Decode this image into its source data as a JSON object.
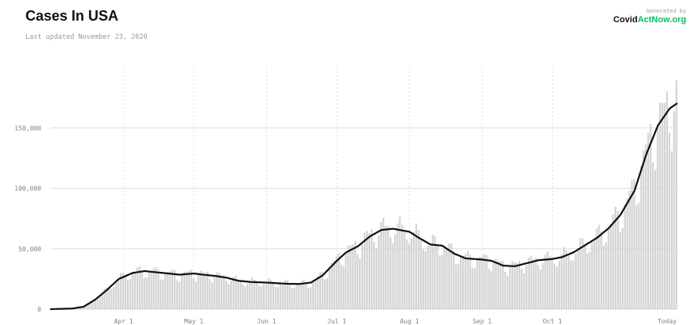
{
  "header": {
    "title": "Cases In USA",
    "subtitle": "Last updated November 23, 2020"
  },
  "brand": {
    "generated_by": "Generated by",
    "logo_part1": "Covid",
    "logo_part2": "ActNow.org"
  },
  "colors": {
    "bars": "#d4d4d4",
    "line": "#111111",
    "grid": "#dddddd",
    "brand_accent": "#00c45a"
  },
  "chart_data": {
    "type": "bar",
    "overlay": "line (7-day average)",
    "x_range": [
      "2020-03-01",
      "2020-11-23"
    ],
    "ylim": [
      0,
      200000
    ],
    "y_ticks": [
      {
        "value": 0,
        "label": "0"
      },
      {
        "value": 50000,
        "label": "50,000"
      },
      {
        "value": 100000,
        "label": "100,000"
      },
      {
        "value": 150000,
        "label": "150,000"
      }
    ],
    "x_ticks": [
      {
        "date": "2020-04-01",
        "label": "Apr 1"
      },
      {
        "date": "2020-05-01",
        "label": "May 1"
      },
      {
        "date": "2020-06-01",
        "label": "Jun 1"
      },
      {
        "date": "2020-07-01",
        "label": "Jul 1"
      },
      {
        "date": "2020-08-01",
        "label": "Aug 1"
      },
      {
        "date": "2020-09-01",
        "label": "Sep 1"
      },
      {
        "date": "2020-10-01",
        "label": "Oct 1"
      },
      {
        "date": "2020-11-23",
        "label": "Today"
      }
    ],
    "grid": {
      "horizontal": true,
      "vertical": "dashed at month ticks"
    },
    "average_points": [
      [
        "2020-03-01",
        0
      ],
      [
        "2020-03-10",
        500
      ],
      [
        "2020-03-15",
        2000
      ],
      [
        "2020-03-20",
        8000
      ],
      [
        "2020-03-25",
        16000
      ],
      [
        "2020-03-30",
        25000
      ],
      [
        "2020-04-05",
        30000
      ],
      [
        "2020-04-10",
        31500
      ],
      [
        "2020-04-15",
        30500
      ],
      [
        "2020-04-20",
        29500
      ],
      [
        "2020-04-25",
        28500
      ],
      [
        "2020-05-01",
        29500
      ],
      [
        "2020-05-05",
        28500
      ],
      [
        "2020-05-10",
        27500
      ],
      [
        "2020-05-15",
        26000
      ],
      [
        "2020-05-20",
        23500
      ],
      [
        "2020-05-25",
        22500
      ],
      [
        "2020-06-01",
        22000
      ],
      [
        "2020-06-05",
        21500
      ],
      [
        "2020-06-10",
        21000
      ],
      [
        "2020-06-15",
        20800
      ],
      [
        "2020-06-20",
        22000
      ],
      [
        "2020-06-25",
        28000
      ],
      [
        "2020-07-01",
        40000
      ],
      [
        "2020-07-05",
        47000
      ],
      [
        "2020-07-10",
        52000
      ],
      [
        "2020-07-15",
        60000
      ],
      [
        "2020-07-20",
        65500
      ],
      [
        "2020-07-25",
        66500
      ],
      [
        "2020-08-01",
        64000
      ],
      [
        "2020-08-05",
        59000
      ],
      [
        "2020-08-10",
        53500
      ],
      [
        "2020-08-15",
        52500
      ],
      [
        "2020-08-20",
        46000
      ],
      [
        "2020-08-25",
        42000
      ],
      [
        "2020-09-01",
        41000
      ],
      [
        "2020-09-05",
        40000
      ],
      [
        "2020-09-10",
        36000
      ],
      [
        "2020-09-15",
        35500
      ],
      [
        "2020-09-20",
        38000
      ],
      [
        "2020-09-25",
        40500
      ],
      [
        "2020-10-01",
        41500
      ],
      [
        "2020-10-05",
        43000
      ],
      [
        "2020-10-10",
        47000
      ],
      [
        "2020-10-15",
        53000
      ],
      [
        "2020-10-20",
        59000
      ],
      [
        "2020-10-25",
        67000
      ],
      [
        "2020-10-30",
        78000
      ],
      [
        "2020-11-05",
        98000
      ],
      [
        "2020-11-10",
        128000
      ],
      [
        "2020-11-15",
        152000
      ],
      [
        "2020-11-20",
        166000
      ],
      [
        "2020-11-23",
        170000
      ]
    ]
  }
}
